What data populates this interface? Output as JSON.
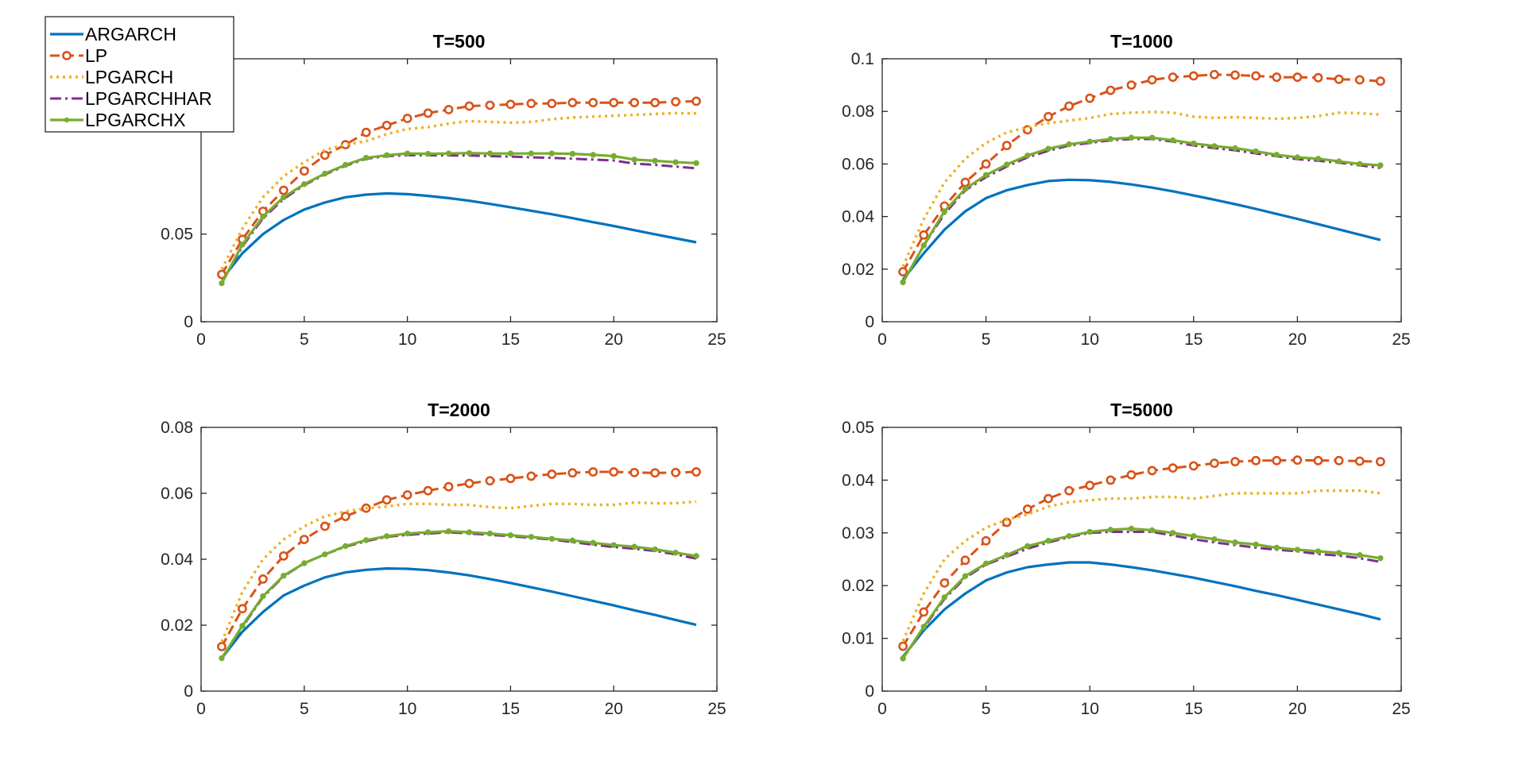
{
  "chart_data": [
    {
      "type": "line",
      "title": "T=500",
      "xlim": [
        0,
        25
      ],
      "ylim": [
        0,
        0.15
      ],
      "xticks": [
        "0",
        "5",
        "10",
        "15",
        "20",
        "25"
      ],
      "yticks": [
        "0",
        "0.05"
      ],
      "ytick_values": [
        0,
        0.05
      ],
      "x": [
        1,
        2,
        3,
        4,
        5,
        6,
        7,
        8,
        9,
        10,
        11,
        12,
        13,
        14,
        15,
        16,
        17,
        18,
        19,
        20,
        21,
        22,
        23,
        24
      ],
      "series": [
        {
          "name": "ARGARCH",
          "values": [
            0.024,
            0.039,
            0.05,
            0.058,
            0.064,
            0.068,
            0.071,
            0.0725,
            0.0732,
            0.0728,
            0.0718,
            0.0705,
            0.069,
            0.0672,
            0.0653,
            0.0633,
            0.0613,
            0.0591,
            0.0568,
            0.0546,
            0.0522,
            0.0499,
            0.0476,
            0.0453
          ]
        },
        {
          "name": "LP",
          "values": [
            0.027,
            0.047,
            0.063,
            0.075,
            0.086,
            0.095,
            0.101,
            0.108,
            0.112,
            0.116,
            0.119,
            0.121,
            0.123,
            0.1235,
            0.124,
            0.1245,
            0.1245,
            0.125,
            0.125,
            0.125,
            0.125,
            0.125,
            0.1255,
            0.1258
          ]
        },
        {
          "name": "LPGARCH",
          "values": [
            0.03,
            0.053,
            0.071,
            0.083,
            0.091,
            0.098,
            0.101,
            0.103,
            0.107,
            0.11,
            0.111,
            0.113,
            0.1145,
            0.114,
            0.1135,
            0.114,
            0.1155,
            0.1165,
            0.117,
            0.1175,
            0.118,
            0.1185,
            0.119,
            0.1188
          ]
        },
        {
          "name": "LPGARCHHAR",
          "values": [
            0.022,
            0.043,
            0.059,
            0.07,
            0.078,
            0.084,
            0.089,
            0.093,
            0.0945,
            0.095,
            0.095,
            0.0948,
            0.0948,
            0.0945,
            0.0942,
            0.0938,
            0.0935,
            0.093,
            0.0925,
            0.092,
            0.0902,
            0.0895,
            0.0885,
            0.0875
          ]
        },
        {
          "name": "LPGARCHX",
          "values": [
            0.022,
            0.044,
            0.06,
            0.071,
            0.0785,
            0.0845,
            0.0895,
            0.0935,
            0.095,
            0.096,
            0.0958,
            0.096,
            0.0962,
            0.096,
            0.096,
            0.096,
            0.096,
            0.0958,
            0.0952,
            0.0945,
            0.0925,
            0.0918,
            0.091,
            0.0905
          ]
        }
      ]
    },
    {
      "type": "line",
      "title": "T=1000",
      "xlim": [
        0,
        25
      ],
      "ylim": [
        0,
        0.1
      ],
      "xticks": [
        "0",
        "5",
        "10",
        "15",
        "20",
        "25"
      ],
      "yticks": [
        "0",
        "0.02",
        "0.04",
        "0.06",
        "0.08",
        "0.1"
      ],
      "ytick_values": [
        0,
        0.02,
        0.04,
        0.06,
        0.08,
        0.1
      ],
      "x": [
        1,
        2,
        3,
        4,
        5,
        6,
        7,
        8,
        9,
        10,
        11,
        12,
        13,
        14,
        15,
        16,
        17,
        18,
        19,
        20,
        21,
        22,
        23,
        24
      ],
      "series": [
        {
          "name": "ARGARCH",
          "values": [
            0.016,
            0.026,
            0.035,
            0.042,
            0.047,
            0.05,
            0.052,
            0.0535,
            0.054,
            0.0538,
            0.0532,
            0.0522,
            0.051,
            0.0496,
            0.048,
            0.0464,
            0.0447,
            0.0429,
            0.041,
            0.0391,
            0.0371,
            0.0351,
            0.0331,
            0.0311
          ]
        },
        {
          "name": "LP",
          "values": [
            0.019,
            0.033,
            0.044,
            0.053,
            0.06,
            0.067,
            0.073,
            0.078,
            0.082,
            0.085,
            0.088,
            0.09,
            0.092,
            0.093,
            0.0935,
            0.094,
            0.0938,
            0.0935,
            0.093,
            0.093,
            0.0928,
            0.0922,
            0.092,
            0.0915
          ]
        },
        {
          "name": "LPGARCH",
          "values": [
            0.021,
            0.039,
            0.053,
            0.062,
            0.068,
            0.072,
            0.074,
            0.0755,
            0.0765,
            0.0775,
            0.079,
            0.0795,
            0.0798,
            0.0795,
            0.078,
            0.0775,
            0.0778,
            0.0775,
            0.0772,
            0.0775,
            0.0782,
            0.0795,
            0.0793,
            0.0788
          ]
        },
        {
          "name": "LPGARCHHAR",
          "values": [
            0.015,
            0.029,
            0.041,
            0.05,
            0.055,
            0.059,
            0.0625,
            0.065,
            0.067,
            0.068,
            0.069,
            0.0695,
            0.0695,
            0.0685,
            0.067,
            0.066,
            0.0652,
            0.064,
            0.063,
            0.0618,
            0.0612,
            0.0605,
            0.0595,
            0.0585
          ]
        },
        {
          "name": "LPGARCHX",
          "values": [
            0.015,
            0.029,
            0.042,
            0.0505,
            0.0558,
            0.0598,
            0.0632,
            0.0658,
            0.0675,
            0.0685,
            0.0695,
            0.07,
            0.07,
            0.069,
            0.0678,
            0.0668,
            0.066,
            0.0648,
            0.0635,
            0.0625,
            0.062,
            0.061,
            0.06,
            0.0595
          ]
        }
      ]
    },
    {
      "type": "line",
      "title": "T=2000",
      "xlim": [
        0,
        25
      ],
      "ylim": [
        0,
        0.08
      ],
      "xticks": [
        "0",
        "5",
        "10",
        "15",
        "20",
        "25"
      ],
      "yticks": [
        "0",
        "0.02",
        "0.04",
        "0.06",
        "0.08"
      ],
      "ytick_values": [
        0,
        0.02,
        0.04,
        0.06,
        0.08
      ],
      "x": [
        1,
        2,
        3,
        4,
        5,
        6,
        7,
        8,
        9,
        10,
        11,
        12,
        13,
        14,
        15,
        16,
        17,
        18,
        19,
        20,
        21,
        22,
        23,
        24
      ],
      "series": [
        {
          "name": "ARGARCH",
          "values": [
            0.01,
            0.018,
            0.024,
            0.029,
            0.032,
            0.0345,
            0.036,
            0.0368,
            0.0372,
            0.0371,
            0.0367,
            0.036,
            0.0351,
            0.034,
            0.0328,
            0.0315,
            0.0302,
            0.0288,
            0.0274,
            0.026,
            0.0245,
            0.0231,
            0.0216,
            0.0201
          ]
        },
        {
          "name": "LP",
          "values": [
            0.0135,
            0.025,
            0.034,
            0.041,
            0.046,
            0.05,
            0.053,
            0.0555,
            0.058,
            0.0595,
            0.0608,
            0.062,
            0.063,
            0.0638,
            0.0645,
            0.0652,
            0.0658,
            0.0662,
            0.0665,
            0.0665,
            0.0663,
            0.0662,
            0.0663,
            0.0665
          ]
        },
        {
          "name": "LPGARCH",
          "values": [
            0.015,
            0.03,
            0.04,
            0.046,
            0.05,
            0.053,
            0.0545,
            0.0555,
            0.056,
            0.0568,
            0.0568,
            0.0565,
            0.0565,
            0.0558,
            0.0555,
            0.0562,
            0.0568,
            0.0568,
            0.0565,
            0.0565,
            0.0572,
            0.057,
            0.057,
            0.0575
          ]
        },
        {
          "name": "LPGARCHHAR",
          "values": [
            0.01,
            0.0195,
            0.0285,
            0.0348,
            0.0388,
            0.0415,
            0.0438,
            0.0455,
            0.0468,
            0.0474,
            0.0478,
            0.0482,
            0.0478,
            0.0474,
            0.047,
            0.0465,
            0.046,
            0.0452,
            0.0444,
            0.0437,
            0.0432,
            0.0425,
            0.0415,
            0.0402
          ]
        },
        {
          "name": "LPGARCHX",
          "values": [
            0.01,
            0.0198,
            0.0288,
            0.035,
            0.0388,
            0.0415,
            0.044,
            0.0458,
            0.047,
            0.0478,
            0.0482,
            0.0485,
            0.0482,
            0.0478,
            0.0473,
            0.0468,
            0.0462,
            0.0457,
            0.045,
            0.0443,
            0.0438,
            0.043,
            0.042,
            0.041
          ]
        }
      ]
    },
    {
      "type": "line",
      "title": "T=5000",
      "xlim": [
        0,
        25
      ],
      "ylim": [
        0,
        0.05
      ],
      "xticks": [
        "0",
        "5",
        "10",
        "15",
        "20",
        "25"
      ],
      "yticks": [
        "0",
        "0.01",
        "0.02",
        "0.03",
        "0.04",
        "0.05"
      ],
      "ytick_values": [
        0,
        0.01,
        0.02,
        0.03,
        0.04,
        0.05
      ],
      "x": [
        1,
        2,
        3,
        4,
        5,
        6,
        7,
        8,
        9,
        10,
        11,
        12,
        13,
        14,
        15,
        16,
        17,
        18,
        19,
        20,
        21,
        22,
        23,
        24
      ],
      "series": [
        {
          "name": "ARGARCH",
          "values": [
            0.0065,
            0.0115,
            0.0155,
            0.0185,
            0.021,
            0.0225,
            0.0235,
            0.024,
            0.0244,
            0.0244,
            0.024,
            0.0235,
            0.0229,
            0.0222,
            0.0215,
            0.0207,
            0.0199,
            0.019,
            0.0182,
            0.0173,
            0.0164,
            0.0155,
            0.0146,
            0.0136
          ]
        },
        {
          "name": "LP",
          "values": [
            0.0085,
            0.015,
            0.0205,
            0.0248,
            0.0285,
            0.032,
            0.0345,
            0.0365,
            0.038,
            0.039,
            0.04,
            0.041,
            0.0418,
            0.0423,
            0.0427,
            0.0432,
            0.0435,
            0.0437,
            0.0437,
            0.0438,
            0.0437,
            0.0437,
            0.0436,
            0.0435
          ]
        },
        {
          "name": "LPGARCH",
          "values": [
            0.0095,
            0.0185,
            0.025,
            0.0285,
            0.031,
            0.0325,
            0.0335,
            0.035,
            0.0358,
            0.0362,
            0.0365,
            0.0365,
            0.0368,
            0.0368,
            0.0365,
            0.037,
            0.0375,
            0.0375,
            0.0375,
            0.0375,
            0.038,
            0.038,
            0.038,
            0.0375
          ]
        },
        {
          "name": "LPGARCHHAR",
          "values": [
            0.0062,
            0.012,
            0.0175,
            0.0215,
            0.024,
            0.0255,
            0.027,
            0.0282,
            0.0292,
            0.03,
            0.0302,
            0.0302,
            0.0302,
            0.0295,
            0.0288,
            0.0282,
            0.0277,
            0.0272,
            0.0268,
            0.0265,
            0.026,
            0.0257,
            0.0252,
            0.0245
          ]
        },
        {
          "name": "LPGARCHX",
          "values": [
            0.0062,
            0.0122,
            0.0178,
            0.0218,
            0.0242,
            0.0258,
            0.0275,
            0.0285,
            0.0294,
            0.0302,
            0.0306,
            0.0308,
            0.0305,
            0.03,
            0.0294,
            0.0288,
            0.0282,
            0.0278,
            0.0272,
            0.0268,
            0.0265,
            0.0262,
            0.0258,
            0.0252
          ]
        }
      ]
    }
  ],
  "legend": {
    "placement": "top-left",
    "entries": [
      "ARGARCH",
      "LP",
      "LPGARCH",
      "LPGARCHHAR",
      "LPGARCHX"
    ]
  },
  "colors": {
    "ARGARCH": "#0072BD",
    "LP": "#D95319",
    "LPGARCH": "#EDB120",
    "LPGARCHHAR": "#7E2F8E",
    "LPGARCHX": "#77AC30",
    "axis": "#262626"
  }
}
